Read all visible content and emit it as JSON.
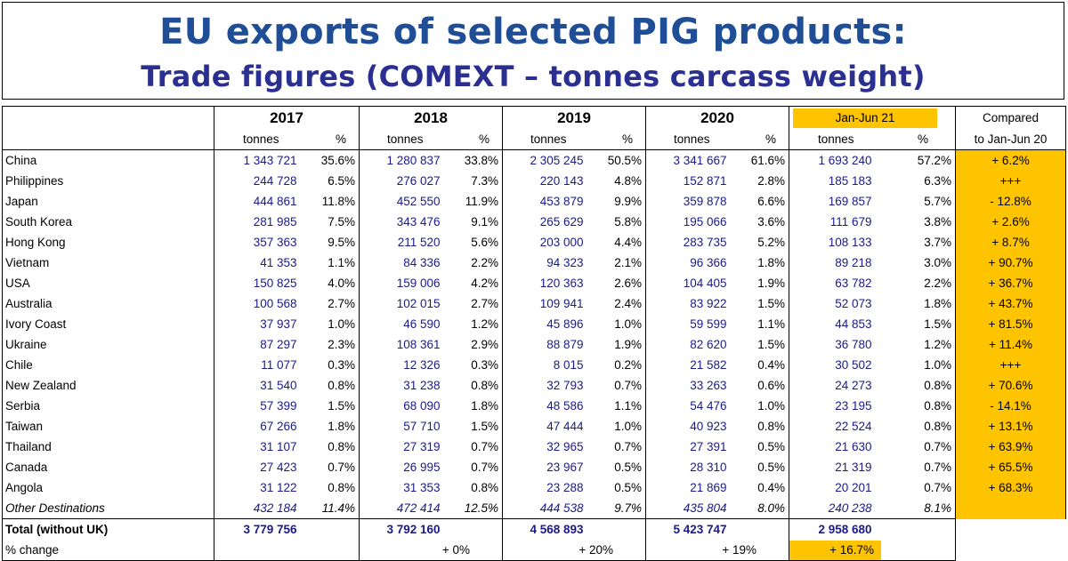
{
  "title": {
    "line1": "EU exports of selected PIG products:",
    "line2": "Trade figures (COMEXT – tonnes carcass weight)"
  },
  "headers": {
    "years": [
      "2017",
      "2018",
      "2019",
      "2020",
      "Jan-Jun 21"
    ],
    "unit": "tonnes",
    "pct": "%",
    "compared_line1": "Compared",
    "compared_line2": "to Jan-Jun 20"
  },
  "rows": [
    {
      "country": "China",
      "cells": [
        [
          "1 343 721",
          "35.6%"
        ],
        [
          "1 280 837",
          "33.8%"
        ],
        [
          "2 305 245",
          "50.5%"
        ],
        [
          "3 341 667",
          "61.6%"
        ],
        [
          "1 693 240",
          "57.2%"
        ]
      ],
      "compared": "+ 6.2%"
    },
    {
      "country": "Philippines",
      "cells": [
        [
          "244 728",
          "6.5%"
        ],
        [
          "276 027",
          "7.3%"
        ],
        [
          "220 143",
          "4.8%"
        ],
        [
          "152 871",
          "2.8%"
        ],
        [
          "185 183",
          "6.3%"
        ]
      ],
      "compared": "+++"
    },
    {
      "country": "Japan",
      "cells": [
        [
          "444 861",
          "11.8%"
        ],
        [
          "452 550",
          "11.9%"
        ],
        [
          "453 879",
          "9.9%"
        ],
        [
          "359 878",
          "6.6%"
        ],
        [
          "169 857",
          "5.7%"
        ]
      ],
      "compared": "- 12.8%"
    },
    {
      "country": "South Korea",
      "cells": [
        [
          "281 985",
          "7.5%"
        ],
        [
          "343 476",
          "9.1%"
        ],
        [
          "265 629",
          "5.8%"
        ],
        [
          "195 066",
          "3.6%"
        ],
        [
          "111 679",
          "3.8%"
        ]
      ],
      "compared": "+ 2.6%"
    },
    {
      "country": "Hong Kong",
      "cells": [
        [
          "357 363",
          "9.5%"
        ],
        [
          "211 520",
          "5.6%"
        ],
        [
          "203 000",
          "4.4%"
        ],
        [
          "283 735",
          "5.2%"
        ],
        [
          "108 133",
          "3.7%"
        ]
      ],
      "compared": "+ 8.7%"
    },
    {
      "country": "Vietnam",
      "cells": [
        [
          "41 353",
          "1.1%"
        ],
        [
          "84 336",
          "2.2%"
        ],
        [
          "94 323",
          "2.1%"
        ],
        [
          "96 366",
          "1.8%"
        ],
        [
          "89 218",
          "3.0%"
        ]
      ],
      "compared": "+ 90.7%"
    },
    {
      "country": "USA",
      "cells": [
        [
          "150 825",
          "4.0%"
        ],
        [
          "159 006",
          "4.2%"
        ],
        [
          "120 363",
          "2.6%"
        ],
        [
          "104 405",
          "1.9%"
        ],
        [
          "63 782",
          "2.2%"
        ]
      ],
      "compared": "+ 36.7%"
    },
    {
      "country": "Australia",
      "cells": [
        [
          "100 568",
          "2.7%"
        ],
        [
          "102 015",
          "2.7%"
        ],
        [
          "109 941",
          "2.4%"
        ],
        [
          "83 922",
          "1.5%"
        ],
        [
          "52 073",
          "1.8%"
        ]
      ],
      "compared": "+ 43.7%"
    },
    {
      "country": "Ivory Coast",
      "cells": [
        [
          "37 937",
          "1.0%"
        ],
        [
          "46 590",
          "1.2%"
        ],
        [
          "45 896",
          "1.0%"
        ],
        [
          "59 599",
          "1.1%"
        ],
        [
          "44 853",
          "1.5%"
        ]
      ],
      "compared": "+ 81.5%"
    },
    {
      "country": "Ukraine",
      "cells": [
        [
          "87 297",
          "2.3%"
        ],
        [
          "108 361",
          "2.9%"
        ],
        [
          "88 879",
          "1.9%"
        ],
        [
          "82 620",
          "1.5%"
        ],
        [
          "36 780",
          "1.2%"
        ]
      ],
      "compared": "+ 11.4%"
    },
    {
      "country": "Chile",
      "cells": [
        [
          "11 077",
          "0.3%"
        ],
        [
          "12 326",
          "0.3%"
        ],
        [
          "8 015",
          "0.2%"
        ],
        [
          "21 582",
          "0.4%"
        ],
        [
          "30 502",
          "1.0%"
        ]
      ],
      "compared": "+++"
    },
    {
      "country": "New Zealand",
      "cells": [
        [
          "31 540",
          "0.8%"
        ],
        [
          "31 238",
          "0.8%"
        ],
        [
          "32 793",
          "0.7%"
        ],
        [
          "33 263",
          "0.6%"
        ],
        [
          "24 273",
          "0.8%"
        ]
      ],
      "compared": "+ 70.6%"
    },
    {
      "country": "Serbia",
      "cells": [
        [
          "57 399",
          "1.5%"
        ],
        [
          "68 090",
          "1.8%"
        ],
        [
          "48 586",
          "1.1%"
        ],
        [
          "54 476",
          "1.0%"
        ],
        [
          "23 195",
          "0.8%"
        ]
      ],
      "compared": "- 14.1%"
    },
    {
      "country": "Taiwan",
      "cells": [
        [
          "67 266",
          "1.8%"
        ],
        [
          "57 710",
          "1.5%"
        ],
        [
          "47 444",
          "1.0%"
        ],
        [
          "40 923",
          "0.8%"
        ],
        [
          "22 524",
          "0.8%"
        ]
      ],
      "compared": "+ 13.1%"
    },
    {
      "country": "Thailand",
      "cells": [
        [
          "31 107",
          "0.8%"
        ],
        [
          "27 319",
          "0.7%"
        ],
        [
          "32 965",
          "0.7%"
        ],
        [
          "27 391",
          "0.5%"
        ],
        [
          "21 630",
          "0.7%"
        ]
      ],
      "compared": "+ 63.9%"
    },
    {
      "country": "Canada",
      "cells": [
        [
          "27 423",
          "0.7%"
        ],
        [
          "26 995",
          "0.7%"
        ],
        [
          "23 967",
          "0.5%"
        ],
        [
          "28 310",
          "0.5%"
        ],
        [
          "21 319",
          "0.7%"
        ]
      ],
      "compared": "+ 65.5%"
    },
    {
      "country": "Angola",
      "cells": [
        [
          "31 122",
          "0.8%"
        ],
        [
          "31 353",
          "0.8%"
        ],
        [
          "23 288",
          "0.5%"
        ],
        [
          "21 869",
          "0.4%"
        ],
        [
          "20 201",
          "0.7%"
        ]
      ],
      "compared": "+ 68.3%"
    },
    {
      "country": "Other Destinations",
      "italic": true,
      "cells": [
        [
          "432 184",
          "11.4%"
        ],
        [
          "472 414",
          "12.5%"
        ],
        [
          "444 538",
          "9.7%"
        ],
        [
          "435 804",
          "8.0%"
        ],
        [
          "240 238",
          "8.1%"
        ]
      ],
      "compared": ""
    }
  ],
  "total": {
    "label": "Total (without UK)",
    "values": [
      "3 779 756",
      "3 792 160",
      "4 568 893",
      "5 423 747",
      "2 958 680"
    ]
  },
  "change": {
    "label": "% change",
    "values": [
      "",
      "+ 0%",
      "+ 20%",
      "+ 19%",
      "+ 16.7%"
    ]
  },
  "colors": {
    "title1": "#1f4e96",
    "title2": "#2b2f8f",
    "numbers": "#1a1a8c",
    "highlight": "#ffc400"
  }
}
